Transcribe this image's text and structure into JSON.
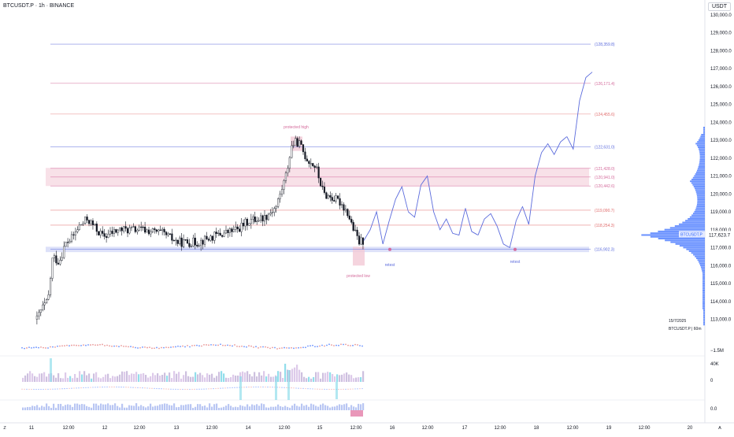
{
  "header": {
    "symbol_title": "BTCUSDT.P · 1h · BINANCE",
    "currency": "USDT"
  },
  "price_axis": {
    "labels": [
      "130,000.0",
      "129,000.0",
      "128,000.0",
      "127,000.0",
      "126,000.0",
      "125,000.0",
      "124,000.0",
      "123,000.0",
      "122,000.0",
      "121,000.0",
      "120,000.0",
      "119,000.0",
      "118,000.0",
      "117,000.0",
      "116,000.0",
      "115,000.0",
      "114,000.0",
      "113,000.0"
    ],
    "values": [
      130000,
      129000,
      128000,
      127000,
      126000,
      125000,
      124000,
      123000,
      122000,
      121000,
      120000,
      119000,
      118000,
      117000,
      116000,
      115000,
      114000,
      113000
    ],
    "current_price_label": "117,623.7",
    "symbol_badge": "BTCUSDT.P",
    "date_badge": "15/7/2025",
    "interval_badge": "BTCUSDT.P  |  60m",
    "indicator_labels": [
      "−1.5M",
      "40K",
      "0",
      "0.0"
    ]
  },
  "levels": [
    {
      "label": "(128,359.8)",
      "value": 128359.8,
      "color": "#5b6bdc"
    },
    {
      "label": "(126,171.4)",
      "value": 126171.4,
      "color": "#d46a9b"
    },
    {
      "label": "(124,455.6)",
      "value": 124455.6,
      "color": "#e06b6b"
    },
    {
      "label": "(122,631.0)",
      "value": 122631.0,
      "color": "#5b6bdc"
    },
    {
      "label": "(121,428.0)",
      "value": 121428.0,
      "color": "#d46a9b"
    },
    {
      "label": "(120,941.0)",
      "value": 120941.0,
      "color": "#d46a9b"
    },
    {
      "label": "(120,442.6)",
      "value": 120442.6,
      "color": "#d46a9b"
    },
    {
      "label": "(119,090.7)",
      "value": 119090.7,
      "color": "#e06b6b"
    },
    {
      "label": "(118,254.3)",
      "value": 118254.3,
      "color": "#e06b6b"
    },
    {
      "label": "(116,902.3)",
      "value": 116902.3,
      "color": "#5b6bdc"
    }
  ],
  "annotations": {
    "protected_high": "protected high",
    "protected_low": "protected low",
    "retest_1": "retest",
    "retest_2": "retest"
  },
  "time_axis": {
    "labels": [
      "11",
      "12:00",
      "12",
      "12:00",
      "13",
      "12:00",
      "14",
      "12:00",
      "15",
      "12:00",
      "16",
      "12:00",
      "17",
      "12:00",
      "18",
      "12:00",
      "19",
      "12:00",
      "20"
    ]
  },
  "footer": {
    "zoom_icon_label": "Z",
    "auto_label": "A"
  },
  "colors": {
    "up": "#ffffff",
    "down": "#131722",
    "blue_line": "#5b6bdc",
    "zone_pink": "#f3c9d6",
    "zone_blue": "#c7cdf5",
    "volume_profile": "#2962ff"
  },
  "chart_data": {
    "type": "candlestick",
    "symbol": "BTCUSDT.P",
    "interval": "1h",
    "exchange": "BINANCE",
    "ylim": [
      112300,
      130300
    ],
    "x_labels": [
      "11",
      "12",
      "13",
      "14",
      "15",
      "16",
      "17",
      "18",
      "19",
      "20"
    ],
    "last_price": 117623.7,
    "levels": [
      128359.8,
      126171.4,
      124455.6,
      122631.0,
      121428.0,
      120941.0,
      120442.6,
      119090.7,
      118254.3,
      116902.3
    ],
    "projection_points": [
      [
        117400,
        118000,
        119000,
        117200,
        118500,
        119700,
        120400,
        119000,
        118700,
        120500,
        121000,
        119000,
        118000,
        118600,
        117800,
        117700,
        119200,
        117900,
        117700,
        118600,
        118900,
        118200,
        117200,
        117000,
        118500,
        119300,
        118300,
        121000,
        122300,
        122800,
        122200,
        122900,
        123200,
        122500,
        125200,
        126500,
        126800
      ]
    ]
  }
}
